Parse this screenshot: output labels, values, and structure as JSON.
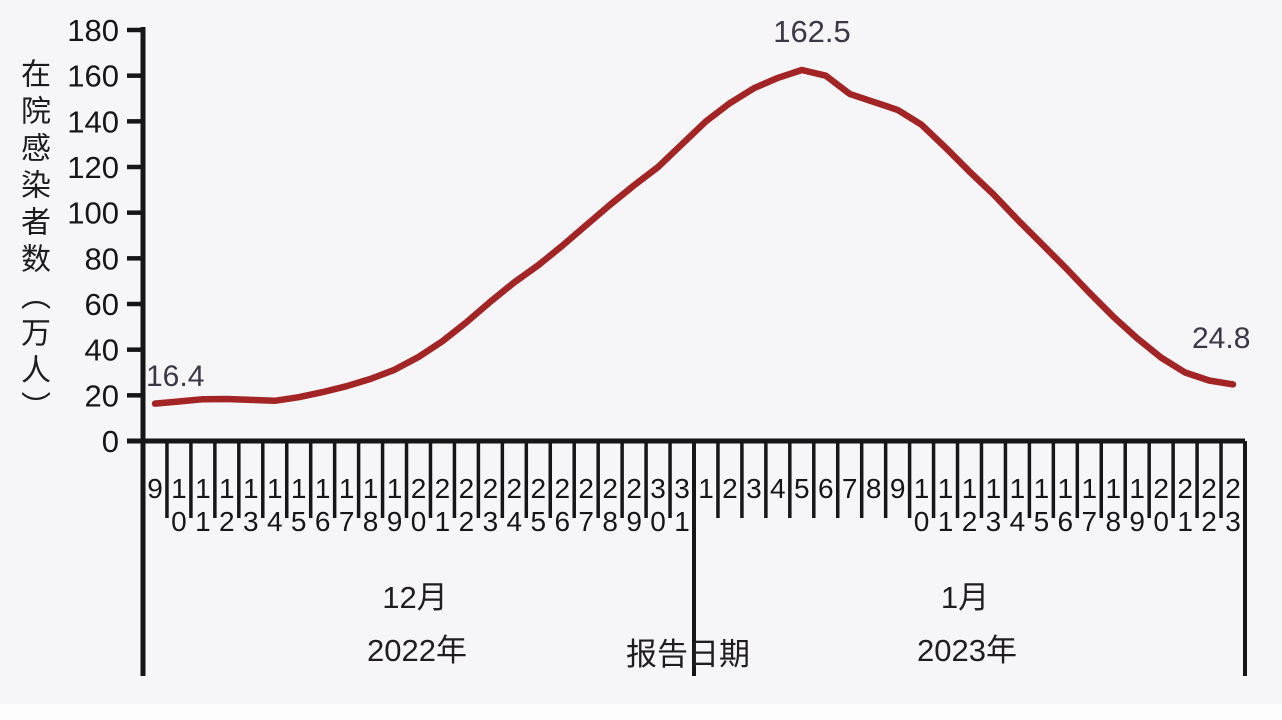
{
  "page": {
    "background": "#f6f5f8"
  },
  "chart_data": {
    "type": "line",
    "title": "",
    "ylabel": "在院感染者数（万人）",
    "xlabel": "报告日期",
    "ylim": [
      0,
      180
    ],
    "yticks": [
      0,
      20,
      40,
      60,
      80,
      100,
      120,
      140,
      160,
      180
    ],
    "grid": false,
    "legend": "none",
    "categories": [
      "9",
      "10",
      "11",
      "12",
      "13",
      "14",
      "15",
      "16",
      "17",
      "18",
      "19",
      "20",
      "21",
      "22",
      "23",
      "24",
      "25",
      "26",
      "27",
      "28",
      "29",
      "30",
      "31",
      "1",
      "2",
      "3",
      "4",
      "5",
      "6",
      "7",
      "8",
      "9",
      "10",
      "11",
      "12",
      "13",
      "14",
      "15",
      "16",
      "17",
      "18",
      "19",
      "20",
      "21",
      "22",
      "23"
    ],
    "series": [
      {
        "name": "在院感染者数",
        "values": [
          16.4,
          17.3,
          18.3,
          18.4,
          18,
          17.6,
          19.2,
          21.4,
          24,
          27.2,
          31.2,
          36.8,
          43.7,
          52,
          61,
          69.5,
          77,
          85.5,
          94.5,
          103.5,
          112,
          120,
          130,
          140,
          148,
          154.5,
          159,
          162.5,
          160,
          152,
          148.5,
          145,
          138.5,
          128.5,
          118,
          108,
          97,
          86.5,
          76,
          65,
          54.5,
          45,
          36.5,
          30,
          26.5,
          24.8
        ]
      }
    ],
    "annotations": [
      {
        "index": 0,
        "label": "16.4"
      },
      {
        "index": 27,
        "label": "162.5"
      },
      {
        "index": 45,
        "label": "24.8"
      }
    ],
    "x_axis_groups": [
      {
        "month": "12月",
        "year": "2022年",
        "category_count": 23
      },
      {
        "month": "1月",
        "year": "2023年",
        "category_count": 23
      }
    ],
    "divider_label": "报告日期",
    "line_color": "#a32424",
    "axis_color": "#161616",
    "tick_label_color": "#161616",
    "annotation_color": "#3d3745"
  }
}
